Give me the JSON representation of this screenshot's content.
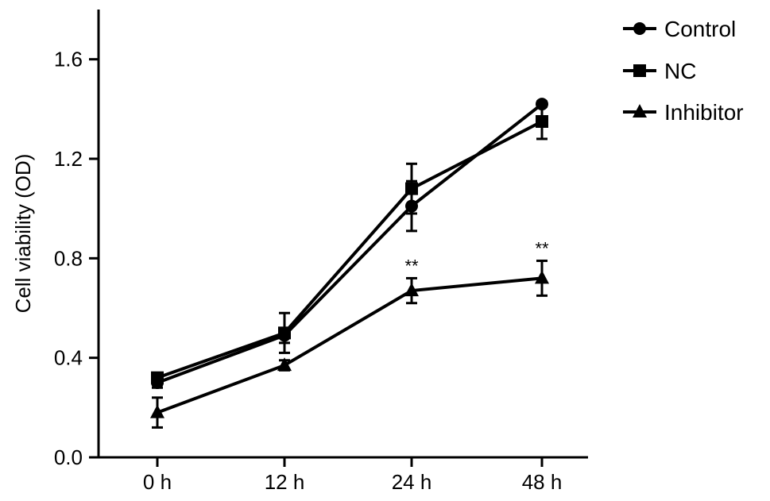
{
  "chart_data": {
    "type": "line",
    "categories": [
      "0 h",
      "12 h",
      "24 h",
      "48 h"
    ],
    "ylabel": "Cell viability (OD)",
    "xlabel": "",
    "ylim": [
      0.0,
      1.8
    ],
    "yticks": [
      "0.0",
      "0.4",
      "0.8",
      "1.2",
      "1.6"
    ],
    "yticks_values": [
      0.0,
      0.4,
      0.8,
      1.2,
      1.6
    ],
    "legend_position": "top-right",
    "series": [
      {
        "name": "Control",
        "marker": "circle",
        "values": [
          0.3,
          0.49,
          1.01,
          1.42
        ],
        "errors": [
          0.02,
          0.03,
          0.1,
          0.01
        ]
      },
      {
        "name": "NC",
        "marker": "square",
        "values": [
          0.32,
          0.5,
          1.08,
          1.35
        ],
        "errors": [
          0.02,
          0.08,
          0.1,
          0.07
        ]
      },
      {
        "name": "Inhibitor",
        "marker": "triangle",
        "values": [
          0.18,
          0.37,
          0.67,
          0.72
        ],
        "errors": [
          0.06,
          0.02,
          0.05,
          0.07
        ]
      }
    ],
    "annotations": [
      {
        "category": "24 h",
        "text": "**"
      },
      {
        "category": "48 h",
        "text": "**"
      }
    ]
  }
}
